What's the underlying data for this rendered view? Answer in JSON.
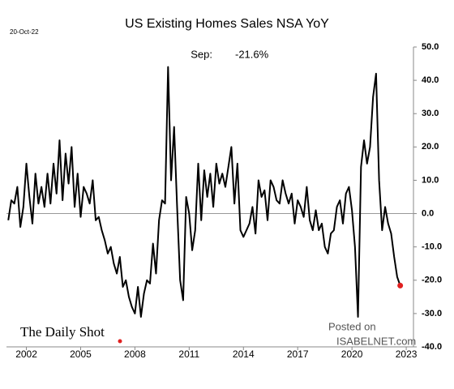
{
  "chart_data": {
    "type": "line",
    "title": "US Existing Homes Sales NSA YoY",
    "date": "20-Oct-22",
    "annotations": [
      "Sep:",
      "-21.6%"
    ],
    "source": "The Daily Shot",
    "watermark": [
      "Posted on",
      "ISABELNET.com"
    ],
    "color": "#000000",
    "highlight_color": "#e02020",
    "zero_line": true,
    "x": [
      2001,
      2001.167,
      2001.333,
      2001.5,
      2001.667,
      2001.833,
      2002,
      2002.167,
      2002.333,
      2002.5,
      2002.667,
      2002.833,
      2003,
      2003.167,
      2003.333,
      2003.5,
      2003.667,
      2003.833,
      2004,
      2004.167,
      2004.333,
      2004.5,
      2004.667,
      2004.833,
      2005,
      2005.167,
      2005.333,
      2005.5,
      2005.667,
      2005.833,
      2006,
      2006.167,
      2006.333,
      2006.5,
      2006.667,
      2006.833,
      2007,
      2007.167,
      2007.333,
      2007.5,
      2007.667,
      2007.833,
      2008,
      2008.167,
      2008.333,
      2008.5,
      2008.667,
      2008.833,
      2009,
      2009.167,
      2009.333,
      2009.5,
      2009.667,
      2009.833,
      2010,
      2010.167,
      2010.333,
      2010.5,
      2010.667,
      2010.833,
      2011,
      2011.167,
      2011.333,
      2011.5,
      2011.667,
      2011.833,
      2012,
      2012.167,
      2012.333,
      2012.5,
      2012.667,
      2012.833,
      2013,
      2013.167,
      2013.333,
      2013.5,
      2013.667,
      2013.833,
      2014,
      2014.167,
      2014.333,
      2014.5,
      2014.667,
      2014.833,
      2015,
      2015.167,
      2015.333,
      2015.5,
      2015.667,
      2015.833,
      2016,
      2016.167,
      2016.333,
      2016.5,
      2016.667,
      2016.833,
      2017,
      2017.167,
      2017.333,
      2017.5,
      2017.667,
      2017.833,
      2018,
      2018.167,
      2018.333,
      2018.5,
      2018.667,
      2018.833,
      2019,
      2019.167,
      2019.333,
      2019.5,
      2019.667,
      2019.833,
      2020,
      2020.167,
      2020.333,
      2020.5,
      2020.667,
      2020.833,
      2021,
      2021.167,
      2021.333,
      2021.5,
      2021.667,
      2021.833,
      2022,
      2022.167,
      2022.333,
      2022.5,
      2022.667
    ],
    "values": [
      -2,
      4,
      3,
      8,
      -4,
      2,
      15,
      5,
      -3,
      12,
      3,
      8,
      2,
      12,
      3,
      15,
      6,
      22,
      4,
      18,
      9,
      20,
      2,
      12,
      -1,
      8,
      6,
      3,
      10,
      -2,
      -1,
      -5,
      -8,
      -12,
      -10,
      -15,
      -18,
      -13,
      -22,
      -20,
      -25,
      -28,
      -30,
      -22,
      -31,
      -24,
      -20,
      -21,
      -9,
      -18,
      -2,
      4,
      3,
      44,
      10,
      26,
      2,
      -20,
      -26,
      5,
      0,
      -11,
      -5,
      15,
      -2,
      13,
      5,
      12,
      2,
      15,
      9,
      12,
      8,
      14,
      20,
      3,
      15,
      -5,
      -7,
      -5,
      -3,
      2,
      -6,
      10,
      5,
      7,
      -2,
      10,
      8,
      4,
      3,
      10,
      6,
      3,
      6,
      -3,
      4,
      2,
      -1,
      8,
      -2,
      -5,
      1,
      -5,
      -3,
      -10,
      -12,
      -6,
      -5,
      2,
      4,
      -3,
      6,
      8,
      1,
      -10,
      -31,
      14,
      22,
      15,
      20,
      35,
      42,
      10,
      -5,
      2,
      -3,
      -6,
      -13,
      -19,
      -21.6
    ],
    "xlim": [
      2000.9,
      2023.4
    ],
    "xticks": [
      2002,
      2005,
      2008,
      2011,
      2014,
      2017,
      2020,
      2023
    ],
    "ylim": [
      -40,
      50
    ],
    "yticks": [
      {
        "value": -40,
        "label": "-40.0"
      },
      {
        "value": -30,
        "label": "-30.0"
      },
      {
        "value": -20,
        "label": "-20.0"
      },
      {
        "value": -10,
        "label": "-10.0"
      },
      {
        "value": 0,
        "label": "0.0"
      },
      {
        "value": 10,
        "label": "10.0"
      },
      {
        "value": 20,
        "label": "20.0"
      },
      {
        "value": 30,
        "label": "30.0"
      },
      {
        "value": 40,
        "label": "40.0"
      },
      {
        "value": 50,
        "label": "50.0"
      }
    ]
  }
}
